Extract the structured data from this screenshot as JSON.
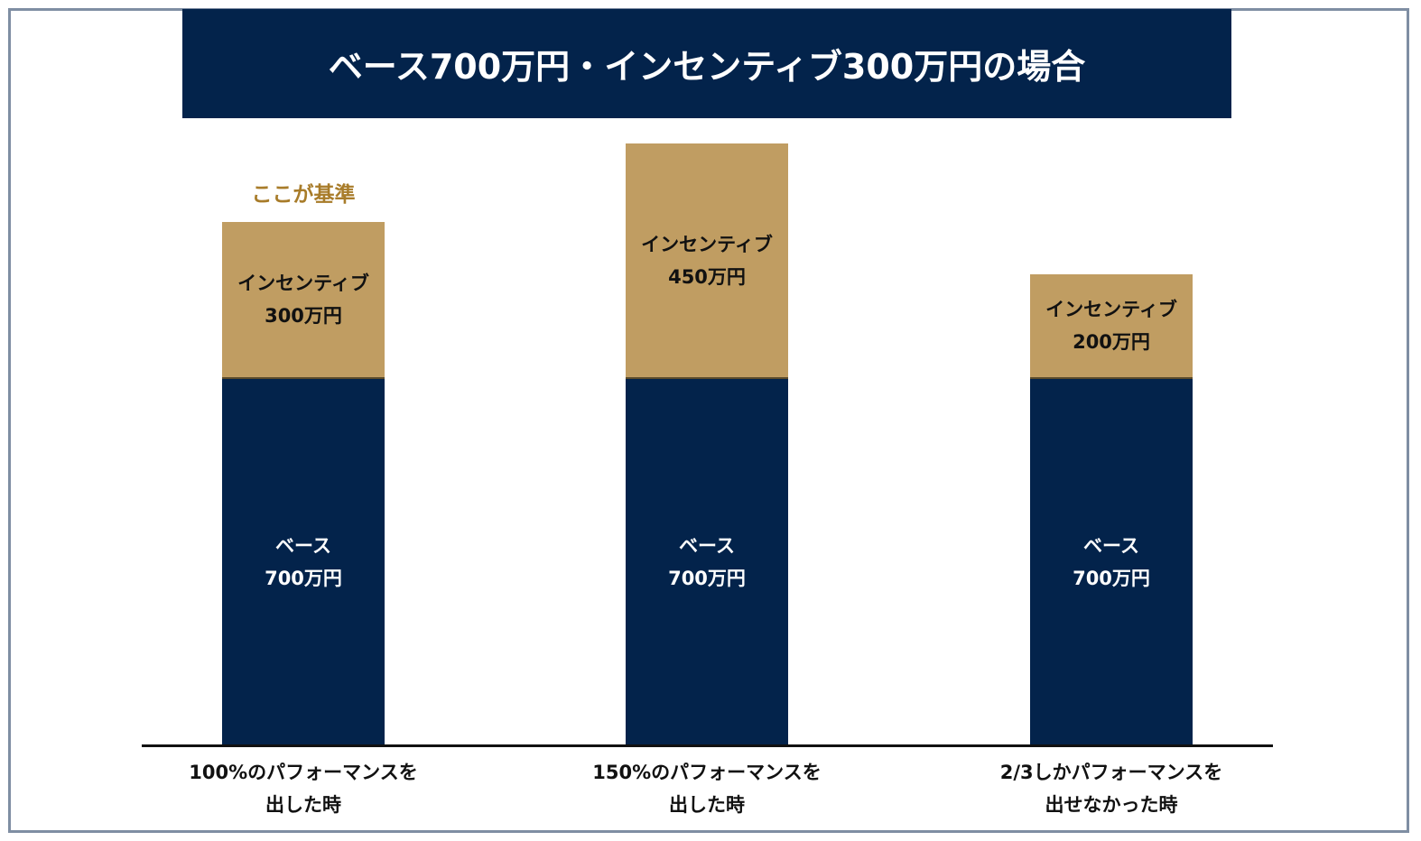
{
  "chart_data": {
    "type": "bar",
    "stacked": true,
    "title": "ベース700万円・インセンティブ300万円の場合",
    "categories": [
      "100%のパフォーマンスを\n出した時",
      "150%のパフォーマンスを\n出した時",
      "2/3しかパフォーマンスを\n出せなかった時"
    ],
    "series": [
      {
        "name": "ベース",
        "values": [
          700,
          700,
          700
        ],
        "labels": [
          "ベース\n700万円",
          "ベース\n700万円",
          "ベース\n700万円"
        ],
        "color": "#03234b"
      },
      {
        "name": "インセンティブ",
        "values": [
          300,
          450,
          200
        ],
        "labels": [
          "インセンティブ\n300万円",
          "インセンティブ\n450万円",
          "インセンティブ\n200万円"
        ],
        "color": "#c09d62"
      }
    ],
    "annotation": {
      "text": "ここが基準",
      "category_index": 0,
      "color": "#a87c2a"
    },
    "xlabel": "",
    "ylabel": "",
    "ylim": [
      0,
      1200
    ],
    "grid": false
  }
}
